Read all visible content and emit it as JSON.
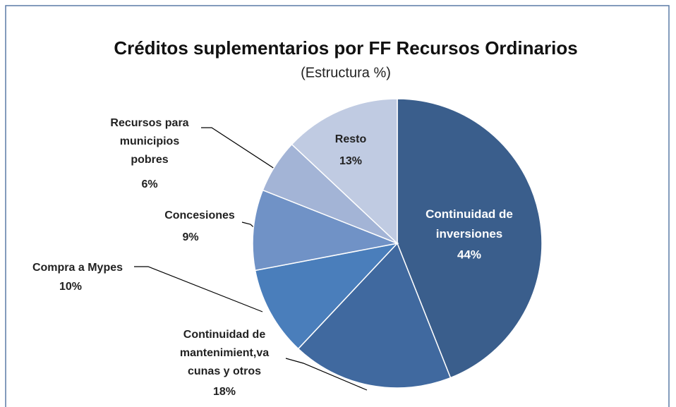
{
  "chart_data": {
    "type": "pie",
    "title": "Créditos suplementarios por  FF Recursos Ordinarios",
    "subtitle": "(Estructura %)",
    "categories": [
      "Continuidad de\ninversiones",
      "Continuidad de\nmantenimient,va\ncunas y otros",
      "Compra a Mypes",
      "Concesiones",
      "Recursos para\nmunicipios\npobres",
      "Resto"
    ],
    "values": [
      44,
      18,
      10,
      9,
      6,
      13
    ],
    "value_labels": [
      "44%",
      "18%",
      "10%",
      "9%",
      "6%",
      "13%"
    ],
    "colors": [
      "#3a5e8c",
      "#40699f",
      "#4a7ebb",
      "#7092c6",
      "#a3b4d6",
      "#c0cbe2"
    ]
  }
}
